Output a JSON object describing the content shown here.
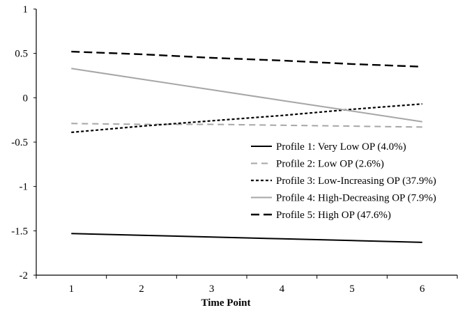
{
  "chart_data": {
    "type": "line",
    "title": "",
    "xlabel": "Time Point",
    "ylabel": "",
    "x": [
      1,
      2,
      3,
      4,
      5,
      6
    ],
    "xlim": [
      0.5,
      6.5
    ],
    "ylim": [
      -2,
      1
    ],
    "yticks": [
      {
        "value": 1,
        "label": "1"
      },
      {
        "value": 0.5,
        "label": "0.5"
      },
      {
        "value": 0,
        "label": "0"
      },
      {
        "value": -0.5,
        "label": "-0.5"
      },
      {
        "value": -1,
        "label": "-1"
      },
      {
        "value": -1.5,
        "label": "-1.5"
      },
      {
        "value": -2,
        "label": "-2"
      }
    ],
    "xticks": [
      {
        "value": 1,
        "label": "1"
      },
      {
        "value": 2,
        "label": "2"
      },
      {
        "value": 3,
        "label": "3"
      },
      {
        "value": 4,
        "label": "4"
      },
      {
        "value": 5,
        "label": "5"
      },
      {
        "value": 6,
        "label": "6"
      }
    ],
    "grid": false,
    "legend_position": "center-right",
    "series": [
      {
        "name": "Profile 1: Very Low OP (4.0%)",
        "color": "#000000",
        "dash": "solid",
        "values": [
          -1.53,
          -1.55,
          -1.57,
          -1.59,
          -1.61,
          -1.63
        ]
      },
      {
        "name": "Profile 2:  Low OP (2.6%)",
        "color": "#a6a6a6",
        "dash": "dashed",
        "values": [
          -0.29,
          -0.3,
          -0.3,
          -0.31,
          -0.32,
          -0.33
        ]
      },
      {
        "name": "Profile 3: Low-Increasing OP (37.9%)",
        "color": "#000000",
        "dash": "dotted",
        "values": [
          -0.39,
          -0.32,
          -0.26,
          -0.2,
          -0.13,
          -0.07
        ]
      },
      {
        "name": "Profile 4: High-Decreasing OP (7.9%)",
        "color": "#a6a6a6",
        "dash": "solid",
        "values": [
          0.33,
          0.21,
          0.09,
          -0.03,
          -0.15,
          -0.27
        ]
      },
      {
        "name": "Profile 5: High OP (47.6%)",
        "color": "#000000",
        "dash": "long-dashed",
        "values": [
          0.52,
          0.49,
          0.45,
          0.42,
          0.38,
          0.35
        ]
      }
    ]
  }
}
